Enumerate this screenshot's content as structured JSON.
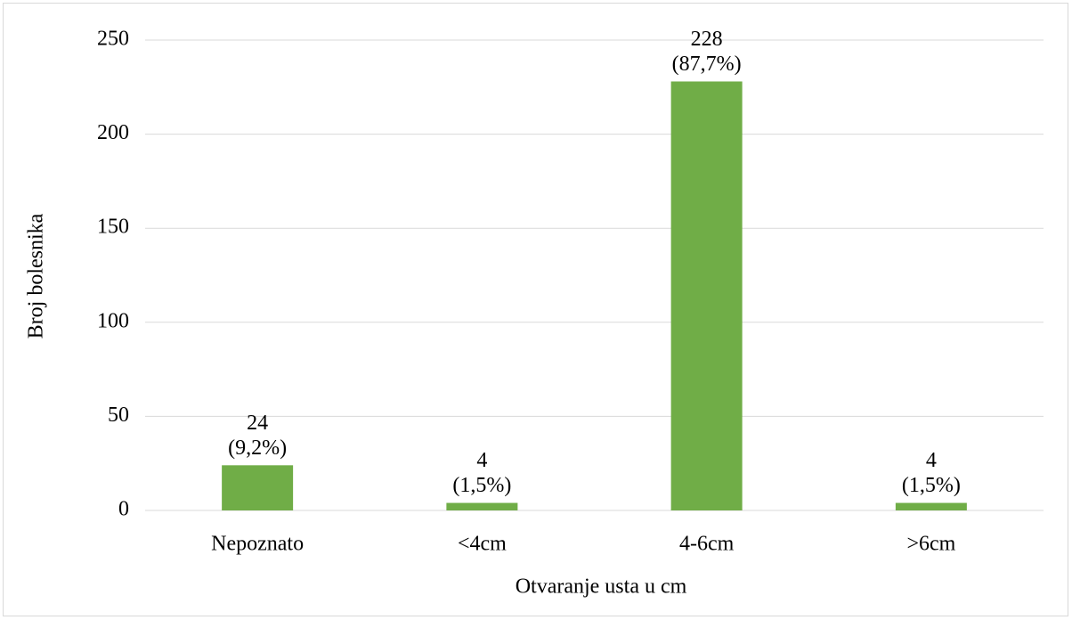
{
  "chart_data": {
    "type": "bar",
    "x_label": "Otvaranje usta u cm",
    "y_label": "Broj bolesnika",
    "categories": [
      "Nepoznato",
      "<4cm",
      "4-6cm",
      ">6cm"
    ],
    "values": [
      24,
      4,
      228,
      4
    ],
    "value_labels": [
      [
        "24",
        "(9,2%)"
      ],
      [
        "4",
        "(1,5%)"
      ],
      [
        "228",
        "(87,7%)"
      ],
      [
        "4",
        "(1,5%)"
      ]
    ],
    "color": "#70ad47",
    "ylim": [
      0,
      250
    ],
    "yticks": [
      0,
      50,
      100,
      150,
      200,
      250
    ],
    "grid": true
  }
}
